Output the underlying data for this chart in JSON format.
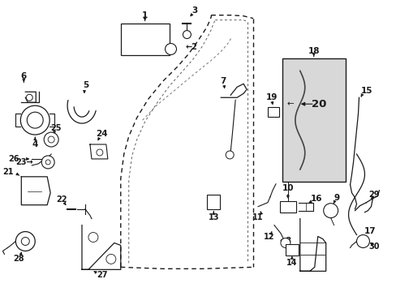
{
  "bg_color": "#ffffff",
  "fig_width": 4.89,
  "fig_height": 3.6,
  "dpi": 100,
  "lc": "#1a1a1a",
  "lw": 0.8,
  "fs": 7.5
}
